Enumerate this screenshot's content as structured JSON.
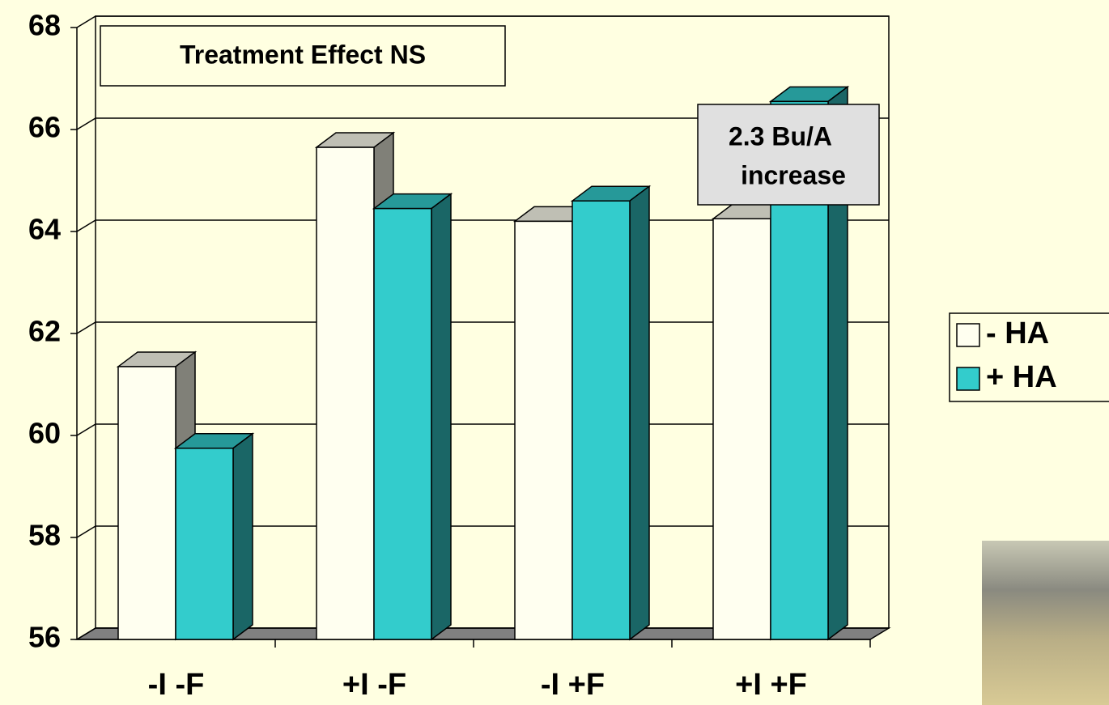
{
  "chart_data": {
    "type": "bar3d",
    "categories": [
      "-I -F",
      "+I -F",
      "-I +F",
      "+I +F"
    ],
    "series": [
      {
        "name": "- HA",
        "color": "#fffff0",
        "values": [
          61.35,
          65.65,
          64.2,
          64.25
        ]
      },
      {
        "name": "+ HA",
        "color": "#33cccc",
        "values": [
          59.75,
          64.45,
          64.6,
          66.55
        ]
      }
    ],
    "ylim": [
      56,
      68
    ],
    "yticks": [
      56,
      58,
      60,
      62,
      64,
      66,
      68
    ],
    "grid": true,
    "legend": "right",
    "annotations": [
      {
        "text": "Treatment Effect NS"
      },
      {
        "lines": [
          "2.3 Bu/A",
          "increase"
        ]
      }
    ]
  }
}
